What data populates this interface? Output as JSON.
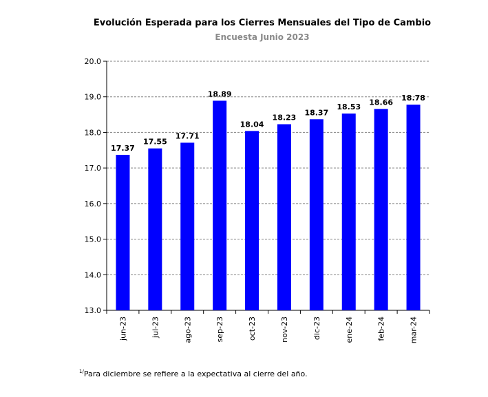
{
  "chart_data": {
    "type": "bar",
    "title": "Evolución Esperada para los Cierres Mensuales del Tipo de Cambio",
    "subtitle": "Encuesta Junio 2023",
    "categories": [
      "jun-23",
      "jul-23",
      "ago-23",
      "sep-23",
      "oct-23",
      "nov-23",
      "dic-23",
      "ene-24",
      "feb-24",
      "mar-24"
    ],
    "values": [
      17.37,
      17.55,
      17.71,
      18.89,
      18.04,
      18.23,
      18.37,
      18.53,
      18.66,
      18.78
    ],
    "value_labels": [
      "17.37",
      "17.55",
      "17.71",
      "18.89",
      "18.04",
      "18.23",
      "18.37",
      "18.53",
      "18.66",
      "18.78"
    ],
    "ylim": [
      13.0,
      20.0
    ],
    "yticks": [
      13.0,
      14.0,
      15.0,
      16.0,
      17.0,
      18.0,
      19.0,
      20.0
    ],
    "ytick_labels": [
      "13.0",
      "14.0",
      "15.0",
      "16.0",
      "17.0",
      "18.0",
      "19.0",
      "20.0"
    ],
    "grid": true,
    "bar_color": "#0000ff",
    "grid_color": "#808080"
  },
  "footnote": {
    "marker": "1/",
    "text": "Para diciembre se refiere a la expectativa al cierre del año."
  }
}
